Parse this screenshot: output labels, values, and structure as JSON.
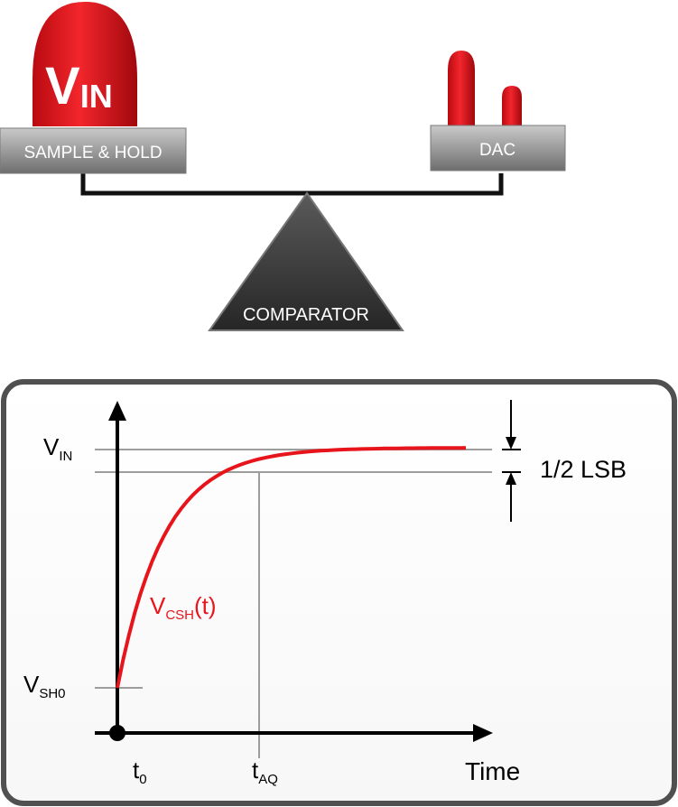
{
  "balance": {
    "left_box_label": "SAMPLE & HOLD",
    "right_box_label": "DAC",
    "fulcrum_label": "COMPARATOR",
    "vin_label": {
      "main": "V",
      "sub": "IN"
    }
  },
  "graph": {
    "y_labels": {
      "vin": {
        "main": "V",
        "sub": "IN"
      },
      "vsh0": {
        "main": "V",
        "sub": "SH0"
      }
    },
    "x_labels": {
      "t0": {
        "main": "t",
        "sub": "0"
      },
      "taq": {
        "main": "t",
        "sub": "AQ"
      },
      "time": "Time"
    },
    "curve_label": {
      "main": "V",
      "sub": "CSH",
      "suffix": "(t)"
    },
    "lsb_label": "1/2 LSB"
  },
  "colors": {
    "accent_red": "#e8141b",
    "box_grey": "#9a9a9a",
    "fulcrum_dark": "#3a3a3a",
    "frame_border": "#505050",
    "line_grey": "#9d9d9d"
  }
}
